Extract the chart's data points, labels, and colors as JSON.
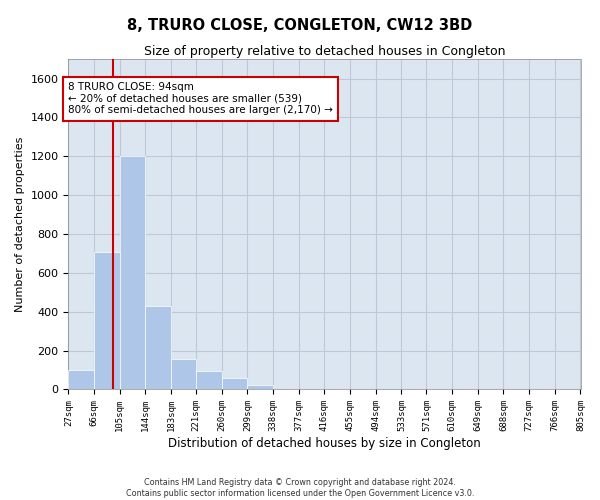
{
  "title": "8, TRURO CLOSE, CONGLETON, CW12 3BD",
  "subtitle": "Size of property relative to detached houses in Congleton",
  "xlabel": "Distribution of detached houses by size in Congleton",
  "ylabel": "Number of detached properties",
  "bin_labels": [
    "27sqm",
    "66sqm",
    "105sqm",
    "144sqm",
    "183sqm",
    "221sqm",
    "260sqm",
    "299sqm",
    "338sqm",
    "377sqm",
    "416sqm",
    "455sqm",
    "494sqm",
    "533sqm",
    "571sqm",
    "610sqm",
    "649sqm",
    "688sqm",
    "727sqm",
    "766sqm",
    "805sqm"
  ],
  "bar_values": [
    100,
    710,
    1200,
    430,
    155,
    95,
    60,
    25,
    0,
    0,
    0,
    0,
    0,
    0,
    0,
    0,
    0,
    0,
    0,
    0
  ],
  "ylim": [
    0,
    1700
  ],
  "yticks": [
    0,
    200,
    400,
    600,
    800,
    1000,
    1200,
    1400,
    1600
  ],
  "bar_color": "#aec6e8",
  "grid_color": "#c0c8d8",
  "background_color": "#dce6f0",
  "annotation_text": "8 TRURO CLOSE: 94sqm\n← 20% of detached houses are smaller (539)\n80% of semi-detached houses are larger (2,170) →",
  "annotation_box_color": "#ffffff",
  "annotation_box_edge": "#cc0000",
  "property_line_color": "#cc0000",
  "footer_text": "Contains HM Land Registry data © Crown copyright and database right 2024.\nContains public sector information licensed under the Open Government Licence v3.0.",
  "bin_edges": [
    27,
    66,
    105,
    144,
    183,
    221,
    260,
    299,
    338,
    377,
    416,
    455,
    494,
    533,
    571,
    610,
    649,
    688,
    727,
    766,
    805
  ]
}
